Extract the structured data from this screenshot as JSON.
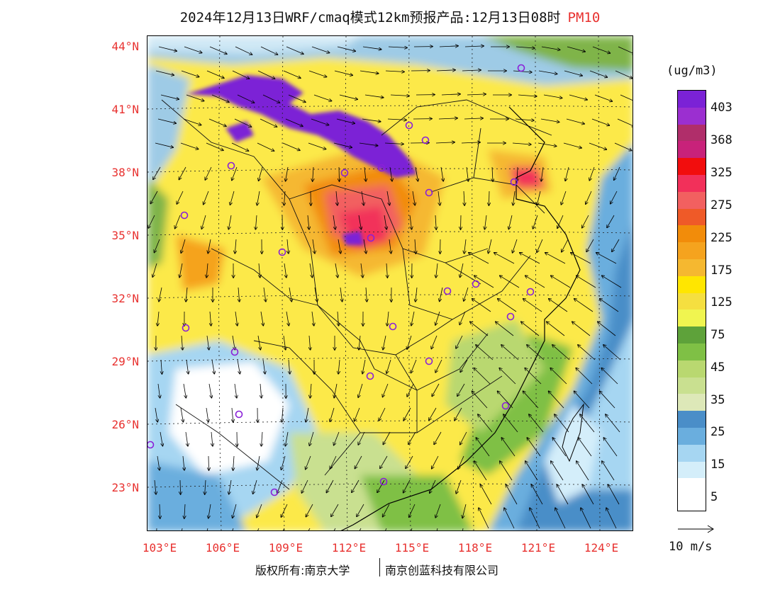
{
  "title": {
    "text": "2024年12月13日WRF/cmaq模式12km预报产品:12月13日08时",
    "pollutant": "PM10",
    "pollutant_color": "#e8312f"
  },
  "map": {
    "lat_labels": [
      "44°N",
      "41°N",
      "38°N",
      "35°N",
      "32°N",
      "29°N",
      "26°N",
      "23°N"
    ],
    "lon_labels": [
      "103°E",
      "106°E",
      "109°E",
      "112°E",
      "115°E",
      "118°E",
      "121°E",
      "124°E"
    ],
    "city_marker_color": "#8a20d8"
  },
  "colorbar": {
    "unit": "(ug/m3)",
    "colors": [
      "#7b22d6",
      "#9b2fd0",
      "#b02e6a",
      "#c8227a",
      "#f20d0d",
      "#f2305a",
      "#f26060",
      "#ef5a28",
      "#f28c0a",
      "#f5a31e",
      "#f5b830",
      "#ffe600",
      "#f5df40",
      "#f0f550",
      "#5ea23a",
      "#7fc045",
      "#b9d870",
      "#c9e090",
      "#dde8b8",
      "#4a8ec8",
      "#6aaede",
      "#a6d6f2",
      "#d4eefa",
      "#ffffff"
    ],
    "labels": [
      "403",
      "368",
      "325",
      "275",
      "225",
      "175",
      "125",
      "75",
      "45",
      "35",
      "25",
      "15",
      "5"
    ]
  },
  "reference_vector": {
    "label": "10 m/s"
  },
  "copyright": {
    "left": "版权所有:南京大学",
    "right": "南京创蓝科技有限公司"
  }
}
